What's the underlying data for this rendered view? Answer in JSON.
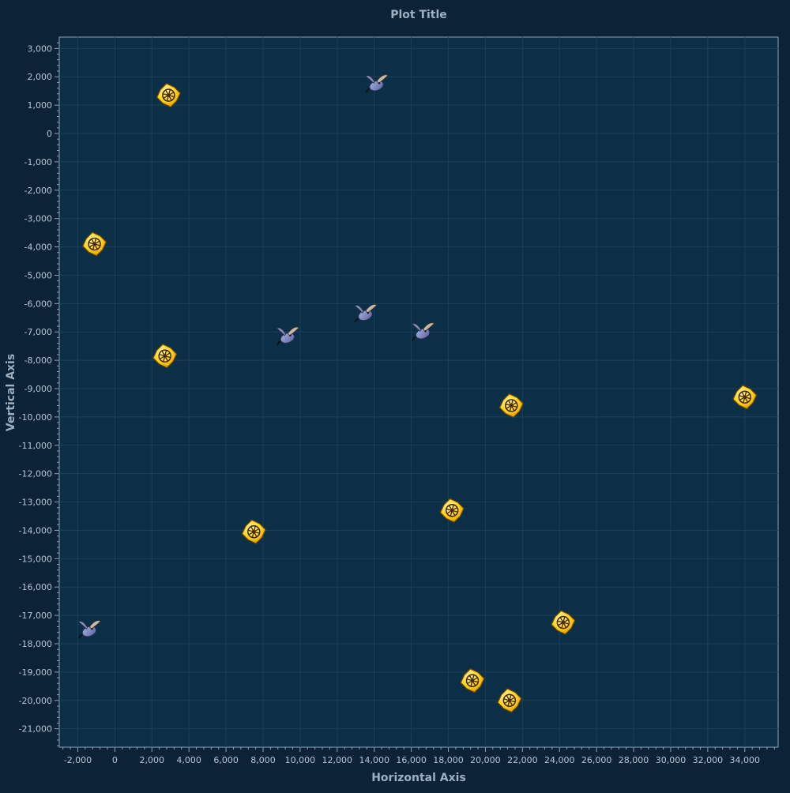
{
  "chart_data": {
    "type": "scatter",
    "title": "Plot Title",
    "xlabel": "Horizontal Axis",
    "ylabel": "Vertical Axis",
    "xlim": [
      -3000,
      35800
    ],
    "ylim": [
      -21650,
      3400
    ],
    "x_ticks": [
      -2000,
      0,
      2000,
      4000,
      6000,
      8000,
      10000,
      12000,
      14000,
      16000,
      18000,
      20000,
      22000,
      24000,
      26000,
      28000,
      30000,
      32000,
      34000
    ],
    "x_tick_labels": [
      "-2,000",
      "0",
      "2,000",
      "4,000",
      "6,000",
      "8,000",
      "10,000",
      "12,000",
      "14,000",
      "16,000",
      "18,000",
      "20,000",
      "22,000",
      "24,000",
      "26,000",
      "28,000",
      "30,000",
      "32,000",
      "34,000"
    ],
    "y_ticks": [
      3000,
      2000,
      1000,
      0,
      -1000,
      -2000,
      -3000,
      -4000,
      -5000,
      -6000,
      -7000,
      -8000,
      -9000,
      -10000,
      -11000,
      -12000,
      -13000,
      -14000,
      -15000,
      -16000,
      -17000,
      -18000,
      -19000,
      -20000,
      -21000
    ],
    "y_tick_labels": [
      "3,000",
      "2,000",
      "1,000",
      "0",
      "-1,000",
      "-2,000",
      "-3,000",
      "-4,000",
      "-5,000",
      "-6,000",
      "-7,000",
      "-8,000",
      "-9,000",
      "-10,000",
      "-11,000",
      "-12,000",
      "-13,000",
      "-14,000",
      "-15,000",
      "-16,000",
      "-17,000",
      "-18,000",
      "-19,000",
      "-20,000",
      "-21,000"
    ],
    "grid": true,
    "colors": {
      "page_bg": "#0b2237",
      "plot_bg": "#0c2f48",
      "grid": "#1b4058",
      "axis": "#8da3b5",
      "text": "#b9c6d3",
      "title": "#9fb0c0"
    },
    "series": [
      {
        "marker": "wheel-icon",
        "points": [
          {
            "x": 2900,
            "y": 1350
          },
          {
            "x": -1100,
            "y": -3900
          },
          {
            "x": 2700,
            "y": -7850
          },
          {
            "x": 7500,
            "y": -14050
          },
          {
            "x": 18200,
            "y": -13300
          },
          {
            "x": 21400,
            "y": -9600
          },
          {
            "x": 34000,
            "y": -9300
          },
          {
            "x": 24200,
            "y": -17250
          },
          {
            "x": 19300,
            "y": -19300
          },
          {
            "x": 21300,
            "y": -20000
          }
        ]
      },
      {
        "marker": "bird-icon",
        "points": [
          {
            "x": 14100,
            "y": 1800
          },
          {
            "x": 13500,
            "y": -6300
          },
          {
            "x": 9300,
            "y": -7100
          },
          {
            "x": 16600,
            "y": -6950
          },
          {
            "x": -1400,
            "y": -17450
          }
        ]
      }
    ]
  }
}
